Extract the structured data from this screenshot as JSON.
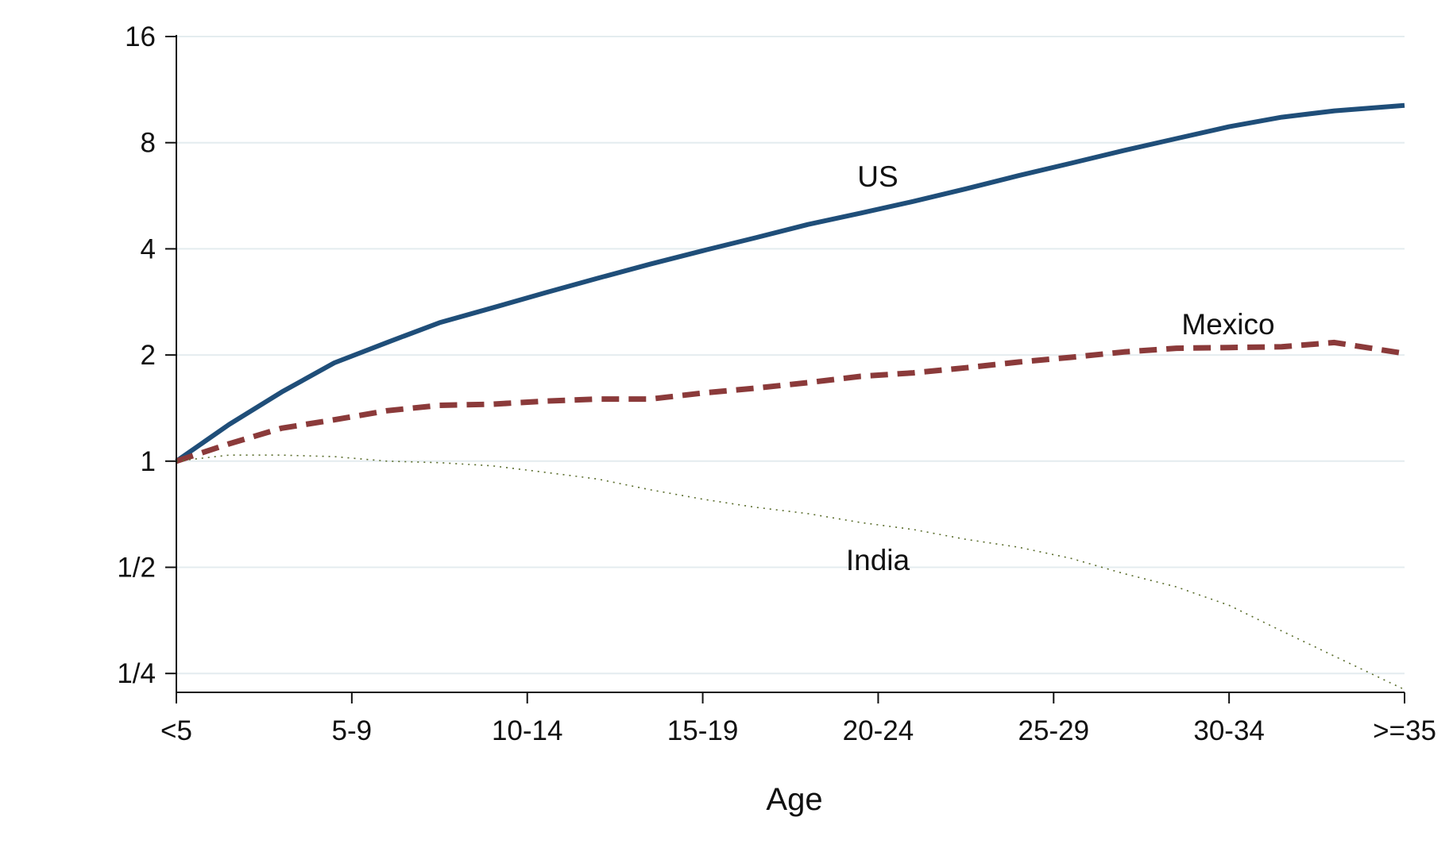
{
  "chart_data": {
    "type": "line",
    "title": "",
    "xlabel": "Age",
    "ylabel": "",
    "y_scale": "log2",
    "ylim": [
      0.221,
      16
    ],
    "y_ticks": [
      0.25,
      0.5,
      1,
      2,
      4,
      8,
      16
    ],
    "y_tick_labels": [
      "1/4",
      "1/2",
      "1",
      "2",
      "4",
      "8",
      "16"
    ],
    "x_range": [
      0,
      35
    ],
    "x_ticks": [
      0,
      5,
      10,
      15,
      20,
      25,
      30,
      35
    ],
    "x_tick_labels": [
      "<5",
      "5-9",
      "10-14",
      "15-19",
      "20-24",
      "25-29",
      "30-34",
      ">=35"
    ],
    "grid": "horizontal",
    "legend": "none",
    "series": [
      {
        "name": "US",
        "color": "#1f4e79",
        "style": "solid",
        "x": [
          0,
          1.5,
          3,
          4.5,
          6,
          7.5,
          9,
          10.5,
          12,
          13.5,
          15,
          16.5,
          18,
          19.5,
          21,
          22.5,
          24,
          25.5,
          27,
          28.5,
          30,
          31.5,
          33,
          35
        ],
        "y": [
          1.0,
          1.27,
          1.57,
          1.9,
          2.17,
          2.47,
          2.72,
          3.0,
          3.3,
          3.62,
          3.95,
          4.3,
          4.69,
          5.05,
          5.45,
          5.92,
          6.45,
          7.0,
          7.6,
          8.22,
          8.88,
          9.45,
          9.85,
          10.2
        ]
      },
      {
        "name": "Mexico",
        "color": "#8b3a3a",
        "style": "dashed",
        "x": [
          0,
          1.5,
          3,
          4.5,
          6,
          7.5,
          9,
          10.5,
          12,
          13.5,
          15,
          16.5,
          18,
          19.5,
          21,
          22.5,
          24,
          25.5,
          27,
          28.5,
          30,
          31.5,
          33,
          35
        ],
        "y": [
          1.0,
          1.12,
          1.24,
          1.31,
          1.39,
          1.44,
          1.45,
          1.48,
          1.5,
          1.5,
          1.56,
          1.61,
          1.67,
          1.74,
          1.78,
          1.84,
          1.91,
          1.97,
          2.04,
          2.09,
          2.1,
          2.11,
          2.17,
          2.02
        ]
      },
      {
        "name": "India",
        "color": "#5b6e2d",
        "style": "dotted",
        "x": [
          0,
          1.5,
          3,
          4.5,
          6,
          7.5,
          9,
          10.5,
          12,
          13.5,
          15,
          16.5,
          18,
          19.5,
          21,
          22.5,
          24,
          25.5,
          27,
          28.5,
          30,
          31.5,
          33,
          35
        ],
        "y": [
          1.0,
          1.04,
          1.04,
          1.03,
          1.0,
          0.99,
          0.97,
          0.93,
          0.89,
          0.83,
          0.78,
          0.74,
          0.71,
          0.67,
          0.64,
          0.6,
          0.57,
          0.53,
          0.48,
          0.44,
          0.39,
          0.33,
          0.28,
          0.225
        ]
      }
    ],
    "annotations": [
      {
        "text": "US",
        "series": "US"
      },
      {
        "text": "Mexico",
        "series": "Mexico"
      },
      {
        "text": "India",
        "series": "India"
      }
    ]
  }
}
